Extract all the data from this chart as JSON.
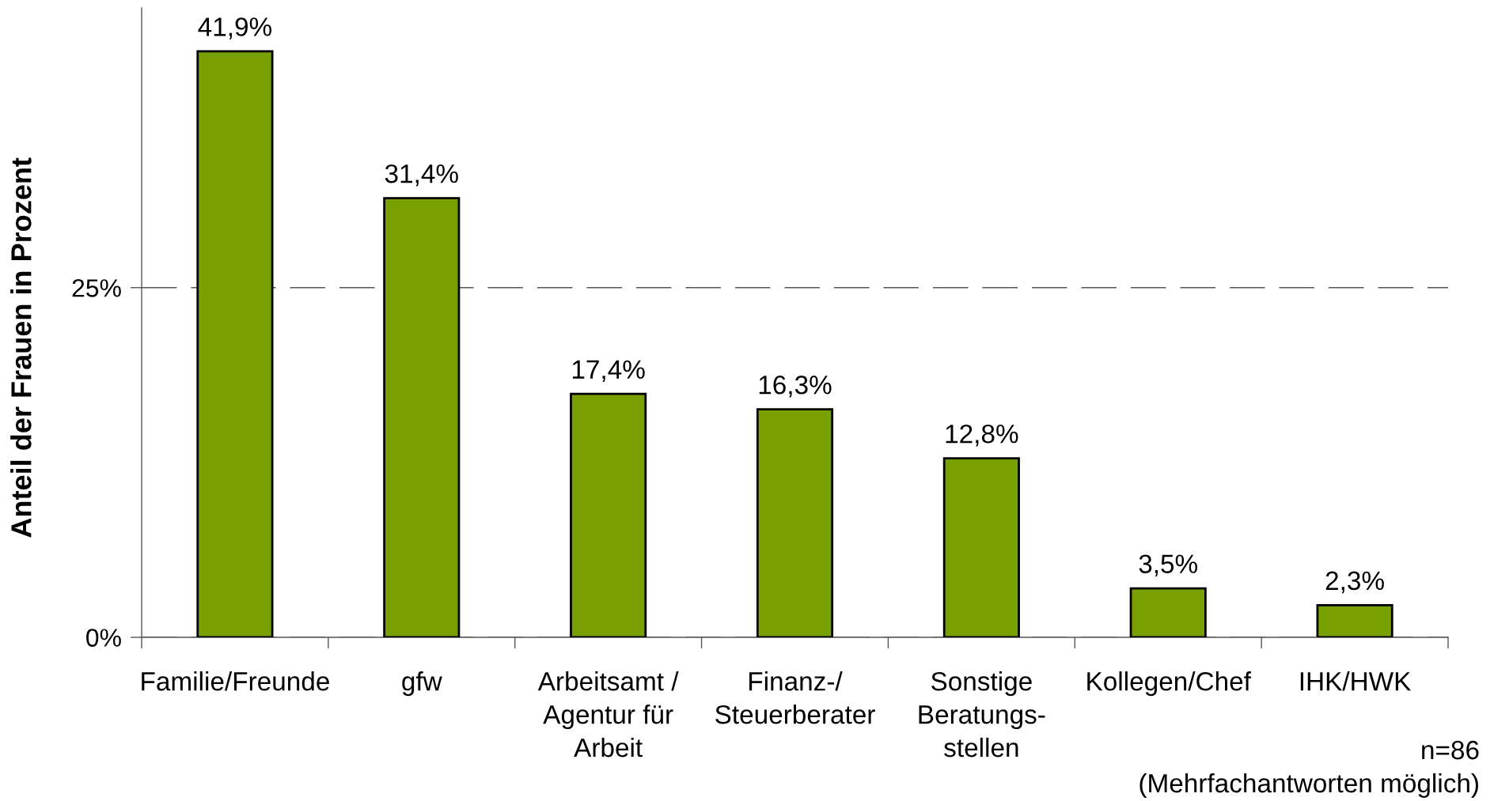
{
  "chart_data": {
    "type": "bar",
    "ylabel": "Anteil der Frauen in Prozent",
    "categories": [
      "Familie/Freunde",
      "gfw",
      "Arbeitsamt /\nAgentur für\nArbeit",
      "Finanz-/\nSteuerberater",
      "Sonstige\nBeratungs-\nstellen",
      "Kollegen/Chef",
      "IHK/HWK"
    ],
    "values": [
      41.9,
      31.4,
      17.4,
      16.3,
      12.8,
      3.5,
      2.3
    ],
    "value_labels": [
      "41,9%",
      "31,4%",
      "17,4%",
      "16,3%",
      "12,8%",
      "3,5%",
      "2,3%"
    ],
    "color": "#78a000",
    "ylim": [
      0,
      45
    ],
    "yticks": [
      {
        "value": 0,
        "label": "0%"
      },
      {
        "value": 25,
        "label": "25%"
      }
    ],
    "grid": "y",
    "annotations": [
      "n=86",
      "(Mehrfachantworten möglich)"
    ]
  }
}
